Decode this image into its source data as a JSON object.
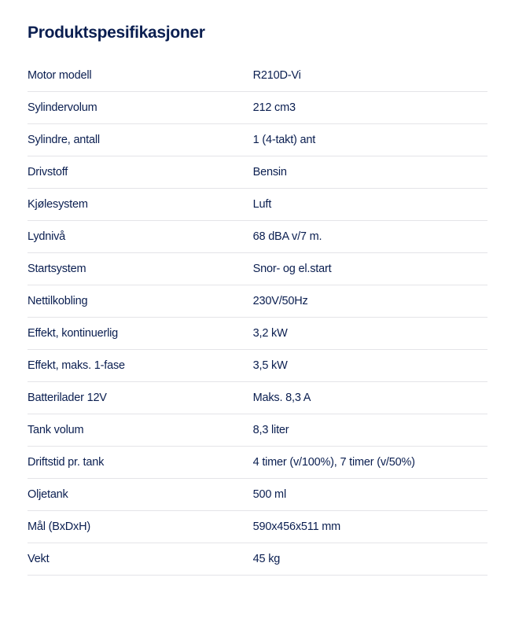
{
  "title": "Produktspesifikasjoner",
  "colors": {
    "text": "#0a1e50",
    "divider": "#e4e4e8",
    "background": "#ffffff"
  },
  "typography": {
    "title_fontsize": 21,
    "title_weight": 700,
    "row_fontsize": 14.5
  },
  "table": {
    "label_width_pct": 49,
    "rows": [
      {
        "label": "Motor modell",
        "value": "R210D-Vi"
      },
      {
        "label": "Sylindervolum",
        "value": "212 cm3"
      },
      {
        "label": "Sylindre, antall",
        "value": "1 (4-takt) ant"
      },
      {
        "label": "Drivstoff",
        "value": "Bensin"
      },
      {
        "label": "Kjølesystem",
        "value": "Luft"
      },
      {
        "label": "Lydnivå",
        "value": "68 dBA v/7 m."
      },
      {
        "label": "Startsystem",
        "value": "Snor- og el.start"
      },
      {
        "label": "Nettilkobling",
        "value": "230V/50Hz"
      },
      {
        "label": "Effekt, kontinuerlig",
        "value": "3,2 kW"
      },
      {
        "label": "Effekt, maks. 1-fase",
        "value": "3,5 kW"
      },
      {
        "label": "Batterilader 12V",
        "value": "Maks. 8,3 A"
      },
      {
        "label": "Tank volum",
        "value": "8,3 liter"
      },
      {
        "label": "Driftstid pr. tank",
        "value": "4 timer (v/100%), 7 timer (v/50%)"
      },
      {
        "label": "Oljetank",
        "value": "500 ml"
      },
      {
        "label": "Mål (BxDxH)",
        "value": "590x456x511 mm"
      },
      {
        "label": "Vekt",
        "value": "45 kg"
      }
    ]
  }
}
